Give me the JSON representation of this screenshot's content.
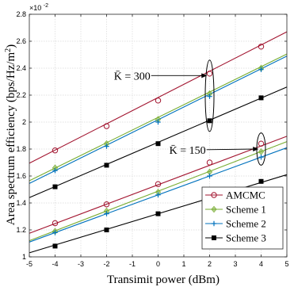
{
  "chart_data": {
    "type": "line",
    "xlabel": "Transimit power (dBm)",
    "ylabel": "Area spectrum efficiency (bps/Hz/m²)",
    "ylabel_parts": {
      "pre": "Area spectrum efficiency (bps/Hz/m",
      "sup": "2",
      "post": ")"
    },
    "y_exponent_label": "×10",
    "y_exponent_value": "-2",
    "xlim": [
      -5,
      5
    ],
    "ylim": [
      1.0,
      2.8
    ],
    "x_ticks": [
      -5,
      -4,
      -3,
      -2,
      -1,
      0,
      1,
      2,
      3,
      4,
      5
    ],
    "x_tick_labels": [
      "-5",
      "-4",
      "-3",
      "-2",
      "-1",
      "0",
      "1",
      "2",
      "3",
      "4",
      "5"
    ],
    "y_ticks": [
      1.0,
      1.2,
      1.4,
      1.6,
      1.8,
      2.0,
      2.2,
      2.4,
      2.6,
      2.8
    ],
    "y_tick_labels": [
      "1",
      "1.2",
      "1.4",
      "1.6",
      "1.8",
      "2",
      "2.2",
      "2.4",
      "2.6",
      "2.8"
    ],
    "grid": true,
    "legend_position": "bottom-right",
    "markers_x": [
      -4,
      -2,
      0,
      2,
      4
    ],
    "line_x": [
      -5,
      5
    ],
    "series": [
      {
        "name": "AMCMC",
        "group": "K300",
        "color": "#a2142f",
        "marker": "circle",
        "line": [
          1.695,
          2.67
        ],
        "markers": [
          1.79,
          1.97,
          2.16,
          2.36,
          2.56
        ]
      },
      {
        "name": "Scheme 1",
        "group": "K300",
        "color": "#77ac30",
        "marker": "diamond",
        "line": [
          1.565,
          2.505
        ],
        "markers": [
          1.66,
          1.84,
          2.02,
          2.21,
          2.4
        ]
      },
      {
        "name": "Scheme 2",
        "group": "K300",
        "color": "#0072bd",
        "marker": "plus",
        "line": [
          1.545,
          2.49
        ],
        "markers": [
          1.64,
          1.82,
          2.0,
          2.19,
          2.39
        ]
      },
      {
        "name": "Scheme 3",
        "group": "K300",
        "color": "#000000",
        "marker": "square",
        "line": [
          1.44,
          2.26
        ],
        "markers": [
          1.52,
          1.68,
          1.84,
          2.01,
          2.18
        ]
      },
      {
        "name": "AMCMC",
        "group": "K150",
        "color": "#a2142f",
        "marker": "circle",
        "line": [
          1.175,
          1.895
        ],
        "markers": [
          1.25,
          1.39,
          1.54,
          1.7,
          1.84
        ]
      },
      {
        "name": "Scheme 1",
        "group": "K150",
        "color": "#77ac30",
        "marker": "diamond",
        "line": [
          1.12,
          1.855
        ],
        "markers": [
          1.19,
          1.34,
          1.48,
          1.63,
          1.78
        ]
      },
      {
        "name": "Scheme 2",
        "group": "K150",
        "color": "#0072bd",
        "marker": "plus",
        "line": [
          1.11,
          1.81
        ],
        "markers": [
          1.18,
          1.32,
          1.46,
          1.6,
          1.74
        ]
      },
      {
        "name": "Scheme 3",
        "group": "K150",
        "color": "#000000",
        "marker": "square",
        "line": [
          1.03,
          1.61
        ],
        "markers": [
          1.08,
          1.2,
          1.32,
          1.44,
          1.56
        ]
      }
    ],
    "annotations": [
      {
        "text": "K̄ = 300",
        "group": "K300",
        "ellipse_x": 2,
        "ellipse_y": [
          1.93,
          2.46
        ],
        "arrow_to": [
          1.9,
          2.345
        ],
        "label_at": [
          -0.3,
          2.345
        ]
      },
      {
        "text": "K̄ = 150",
        "group": "K150",
        "ellipse_x": 4,
        "ellipse_y": [
          1.68,
          1.92
        ],
        "arrow_to": [
          3.9,
          1.8
        ],
        "label_at": [
          1.85,
          1.795
        ]
      }
    ],
    "legend": [
      {
        "label": "AMCMC",
        "color": "#a2142f",
        "marker": "circle"
      },
      {
        "label": "Scheme 1",
        "color": "#77ac30",
        "marker": "diamond"
      },
      {
        "label": "Scheme 2",
        "color": "#0072bd",
        "marker": "plus"
      },
      {
        "label": "Scheme 3",
        "color": "#000000",
        "marker": "square"
      }
    ]
  }
}
